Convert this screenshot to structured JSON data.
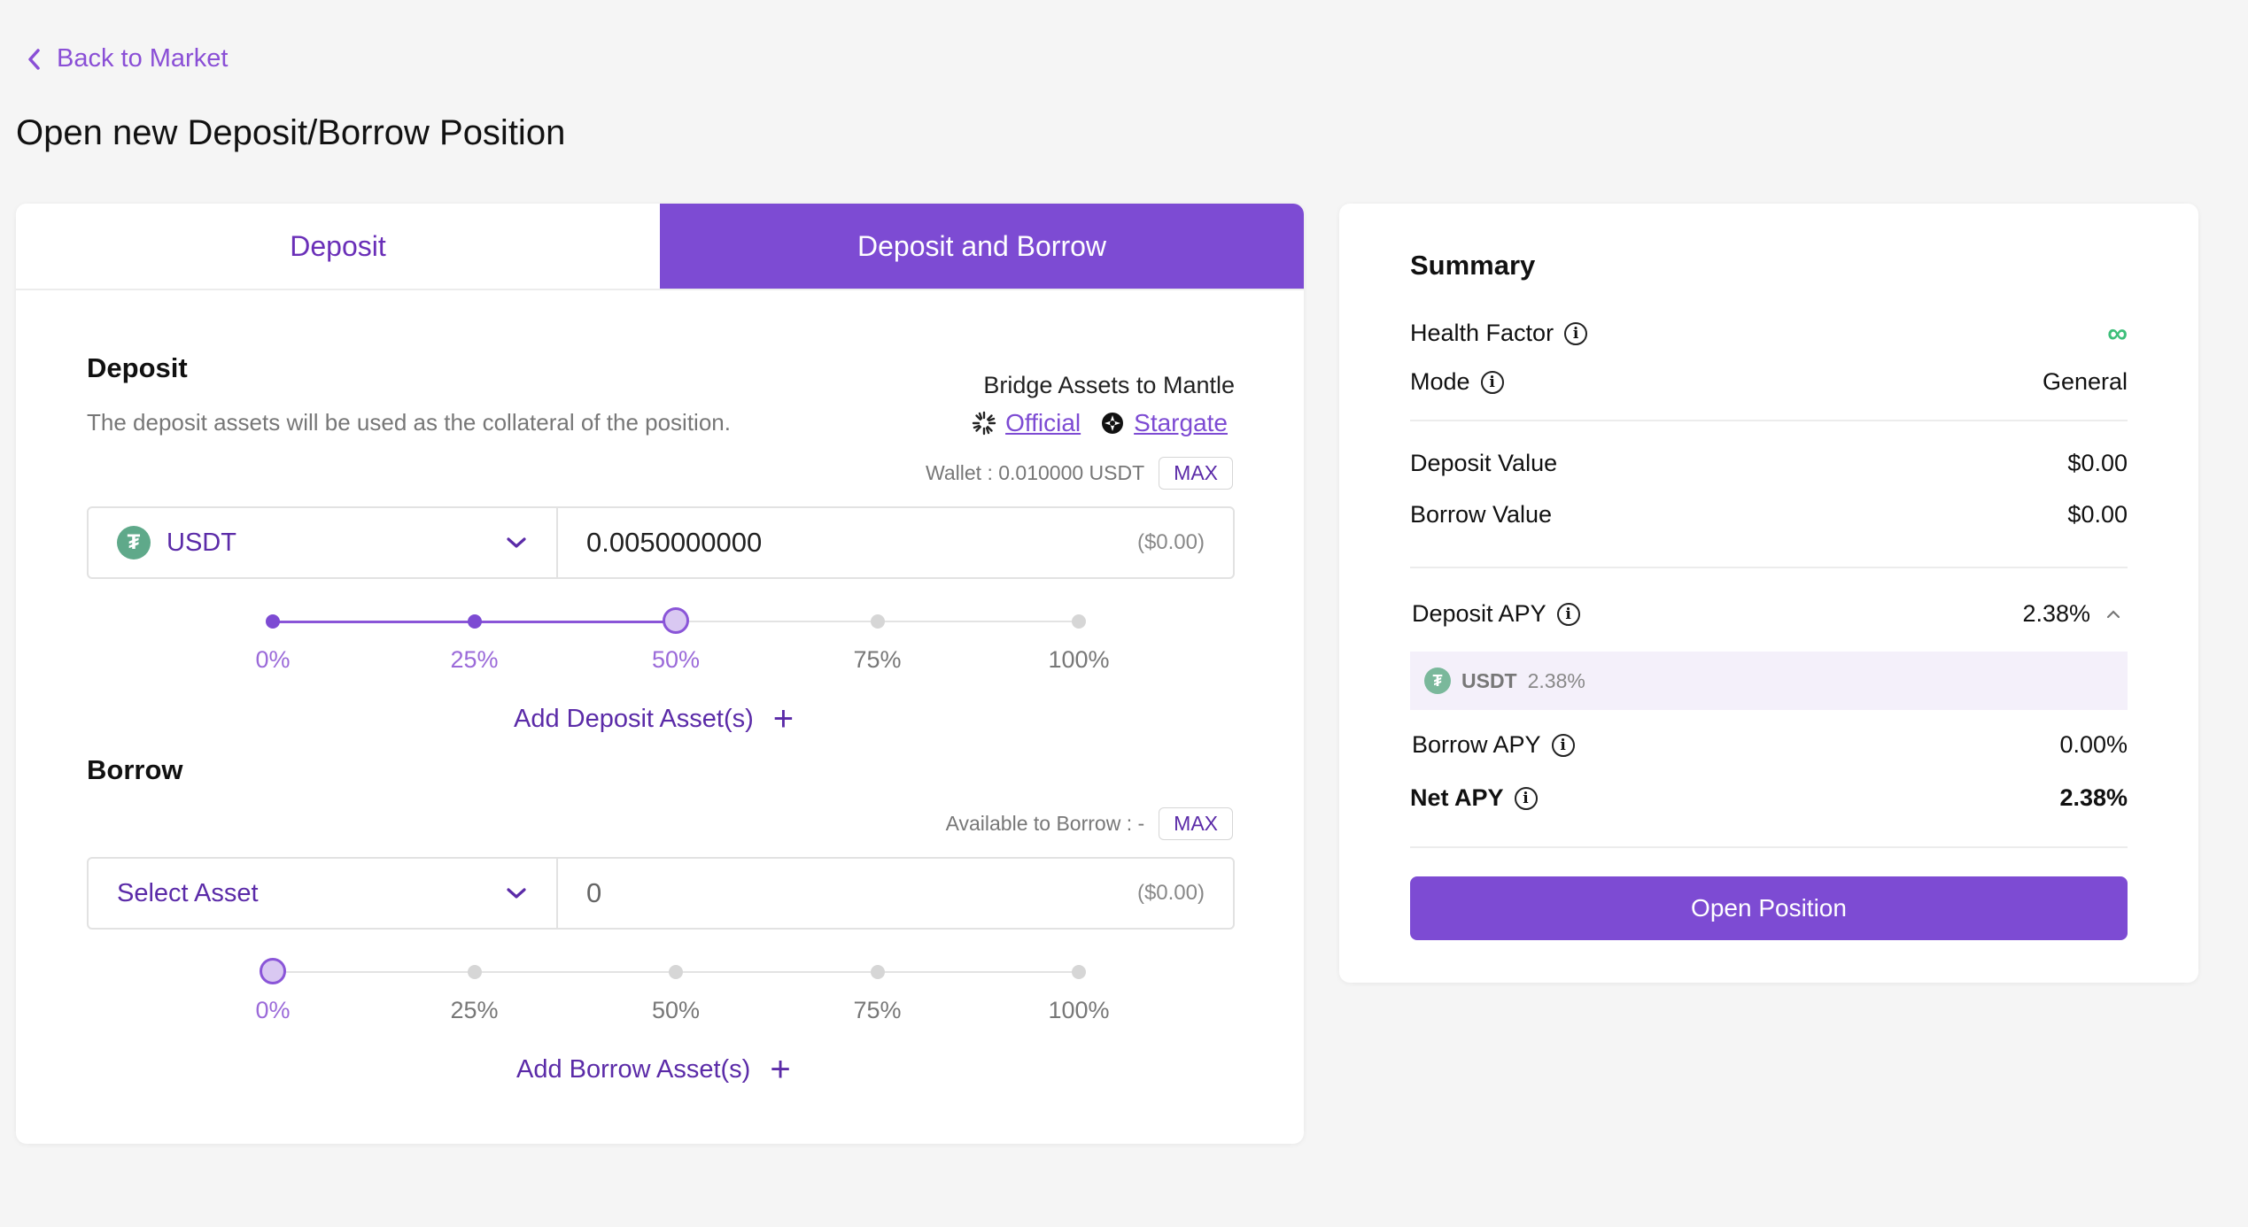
{
  "nav": {
    "back_label": "Back to Market"
  },
  "page_title": "Open new Deposit/Borrow Position",
  "tabs": [
    {
      "label": "Deposit",
      "active": false
    },
    {
      "label": "Deposit and Borrow",
      "active": true
    }
  ],
  "deposit": {
    "title": "Deposit",
    "description": "The deposit assets will be used as the collateral of the position.",
    "bridge_title": "Bridge Assets to Mantle",
    "bridge_links": [
      "Official",
      "Stargate"
    ],
    "wallet_label": "Wallet : 0.010000 USDT",
    "max_label": "MAX",
    "asset": "USDT",
    "asset_icon": "tether-icon",
    "amount": "0.0050000000",
    "amount_usd": "($0.00)",
    "slider_ticks": [
      "0%",
      "25%",
      "50%",
      "75%",
      "100%"
    ],
    "slider_value_percent": 50,
    "add_label": "Add Deposit Asset(s)"
  },
  "borrow": {
    "title": "Borrow",
    "available_label": "Available to Borrow : -",
    "max_label": "MAX",
    "asset": "Select Asset",
    "amount": "0",
    "amount_usd": "($0.00)",
    "slider_ticks": [
      "0%",
      "25%",
      "50%",
      "75%",
      "100%"
    ],
    "slider_value_percent": 0,
    "add_label": "Add Borrow Asset(s)"
  },
  "summary": {
    "title": "Summary",
    "health_factor_label": "Health Factor",
    "health_factor_value": "∞",
    "mode_label": "Mode",
    "mode_value": "General",
    "deposit_value_label": "Deposit Value",
    "deposit_value": "$0.00",
    "borrow_value_label": "Borrow Value",
    "borrow_value": "$0.00",
    "deposit_apy_label": "Deposit APY",
    "deposit_apy_value": "2.38%",
    "deposit_apy_breakdown": {
      "symbol": "USDT",
      "apy": "2.38%"
    },
    "borrow_apy_label": "Borrow APY",
    "borrow_apy_value": "0.00%",
    "net_apy_label": "Net APY",
    "net_apy_value": "2.38%",
    "open_button": "Open Position"
  },
  "colors": {
    "accent": "#7d4bd3",
    "health_good": "#3dbf7a",
    "tether": "#5fa98a"
  }
}
